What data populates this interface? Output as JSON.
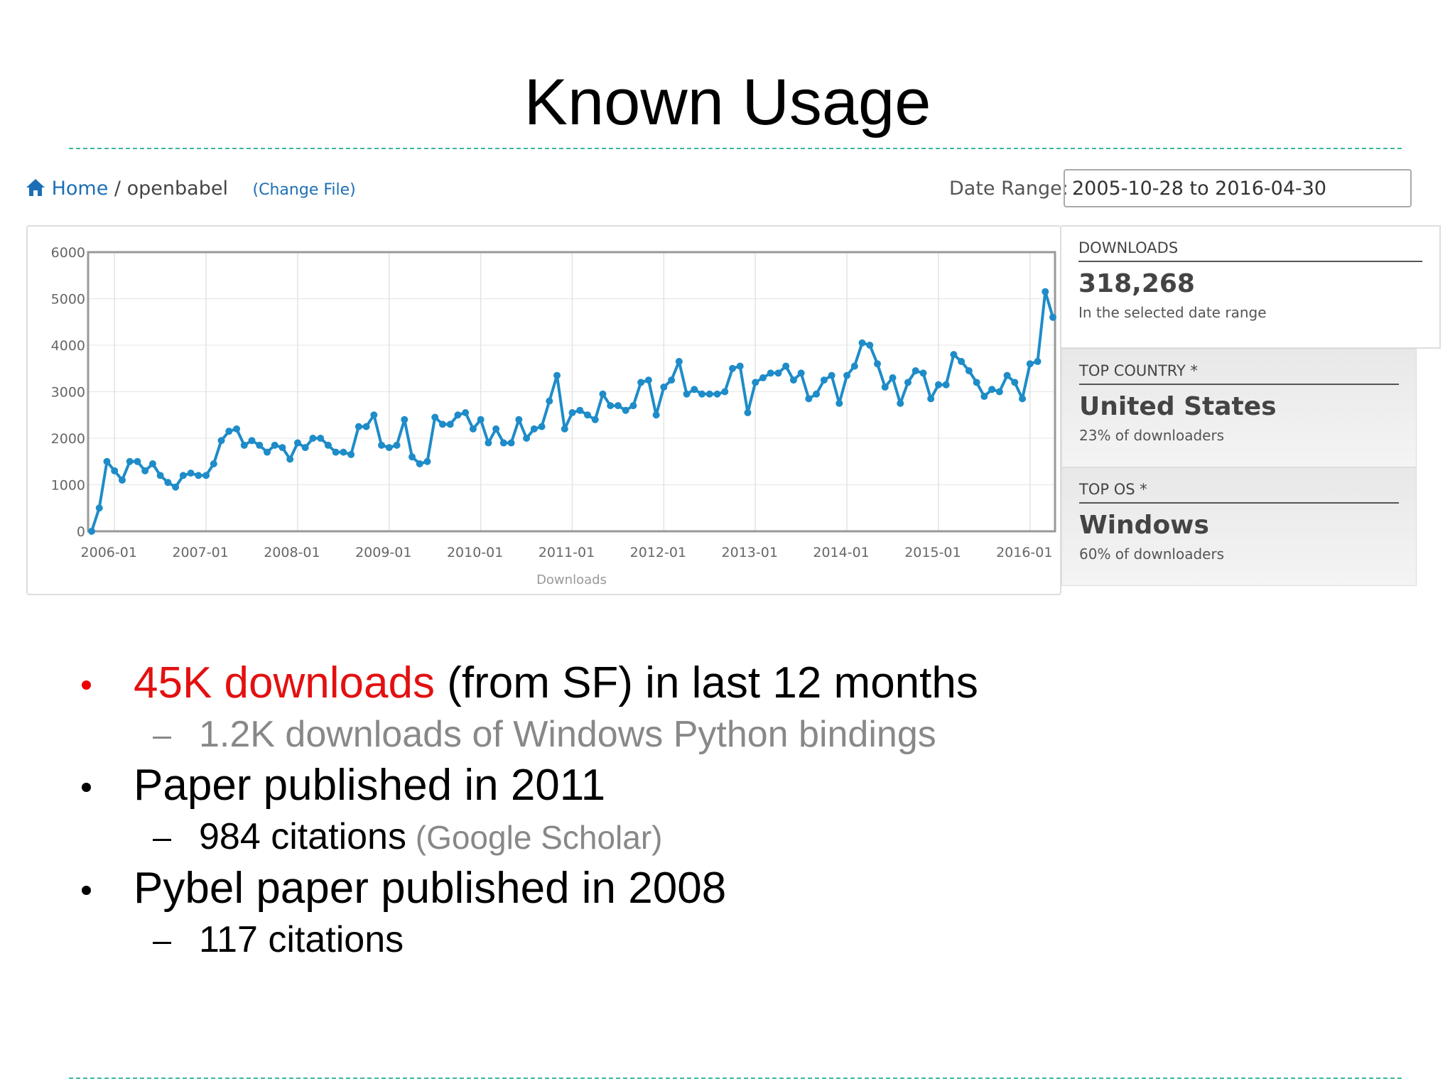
{
  "title": "Known Usage",
  "breadcrumb": {
    "home": "Home",
    "separator": "/",
    "project": "openbabel",
    "change": "(Change File)"
  },
  "date_range": {
    "label": "Date Range:",
    "value": "2005-10-28 to 2016-04-30"
  },
  "stats": [
    {
      "heading": "DOWNLOADS",
      "value": "318,268",
      "note": "In the selected date range"
    },
    {
      "heading": "TOP COUNTRY *",
      "value": "United States",
      "note": "23% of downloaders"
    },
    {
      "heading": "TOP OS *",
      "value": "Windows",
      "note": "60% of downloaders"
    }
  ],
  "bullets": [
    {
      "highlight": "45K downloads",
      "text": " (from SF) in last 12 months",
      "sub": [
        {
          "note": "1.2K downloads of Windows Python bindings"
        }
      ]
    },
    {
      "text": "Paper published in 2011",
      "sub": [
        {
          "text": "984 citations",
          "note": " (Google Scholar)"
        }
      ]
    },
    {
      "text": "Pybel paper published in 2008",
      "sub": [
        {
          "text": "117 citations"
        }
      ]
    }
  ],
  "chart_data": {
    "type": "line",
    "x_label": "Downloads",
    "color": "#1e8cc8",
    "grid": true,
    "ylim": [
      0,
      6000
    ],
    "yticks": [
      0,
      1000,
      2000,
      3000,
      4000,
      5000,
      6000
    ],
    "xticks": [
      "2006-01",
      "2007-01",
      "2008-01",
      "2009-01",
      "2010-01",
      "2011-01",
      "2012-01",
      "2013-01",
      "2014-01",
      "2015-01",
      "2016-01"
    ],
    "categories": [
      "2005-10",
      "2005-11",
      "2005-12",
      "2006-01",
      "2006-02",
      "2006-03",
      "2006-04",
      "2006-05",
      "2006-06",
      "2006-07",
      "2006-08",
      "2006-09",
      "2006-10",
      "2006-11",
      "2006-12",
      "2007-01",
      "2007-02",
      "2007-03",
      "2007-04",
      "2007-05",
      "2007-06",
      "2007-07",
      "2007-08",
      "2007-09",
      "2007-10",
      "2007-11",
      "2007-12",
      "2008-01",
      "2008-02",
      "2008-03",
      "2008-04",
      "2008-05",
      "2008-06",
      "2008-07",
      "2008-08",
      "2008-09",
      "2008-10",
      "2008-11",
      "2008-12",
      "2009-01",
      "2009-02",
      "2009-03",
      "2009-04",
      "2009-05",
      "2009-06",
      "2009-07",
      "2009-08",
      "2009-09",
      "2009-10",
      "2009-11",
      "2009-12",
      "2010-01",
      "2010-02",
      "2010-03",
      "2010-04",
      "2010-05",
      "2010-06",
      "2010-07",
      "2010-08",
      "2010-09",
      "2010-10",
      "2010-11",
      "2010-12",
      "2011-01",
      "2011-02",
      "2011-03",
      "2011-04",
      "2011-05",
      "2011-06",
      "2011-07",
      "2011-08",
      "2011-09",
      "2011-10",
      "2011-11",
      "2011-12",
      "2012-01",
      "2012-02",
      "2012-03",
      "2012-04",
      "2012-05",
      "2012-06",
      "2012-07",
      "2012-08",
      "2012-09",
      "2012-10",
      "2012-11",
      "2012-12",
      "2013-01",
      "2013-02",
      "2013-03",
      "2013-04",
      "2013-05",
      "2013-06",
      "2013-07",
      "2013-08",
      "2013-09",
      "2013-10",
      "2013-11",
      "2013-12",
      "2014-01",
      "2014-02",
      "2014-03",
      "2014-04",
      "2014-05",
      "2014-06",
      "2014-07",
      "2014-08",
      "2014-09",
      "2014-10",
      "2014-11",
      "2014-12",
      "2015-01",
      "2015-02",
      "2015-03",
      "2015-04",
      "2015-05",
      "2015-06",
      "2015-07",
      "2015-08",
      "2015-09",
      "2015-10",
      "2015-11",
      "2015-12",
      "2016-01",
      "2016-02",
      "2016-03",
      "2016-04"
    ],
    "values": [
      0,
      500,
      1500,
      1300,
      1100,
      1500,
      1500,
      1300,
      1450,
      1200,
      1050,
      950,
      1200,
      1250,
      1200,
      1200,
      1450,
      1950,
      2150,
      2200,
      1850,
      1950,
      1850,
      1700,
      1850,
      1800,
      1550,
      1900,
      1800,
      2000,
      2000,
      1850,
      1700,
      1700,
      1650,
      2250,
      2250,
      2500,
      1850,
      1800,
      1850,
      2400,
      1600,
      1450,
      1500,
      2450,
      2300,
      2300,
      2500,
      2550,
      2200,
      2400,
      1900,
      2200,
      1900,
      1900,
      2400,
      2000,
      2200,
      2250,
      2800,
      3350,
      2200,
      2550,
      2600,
      2500,
      2400,
      2950,
      2700,
      2700,
      2600,
      2700,
      3200,
      3250,
      2500,
      3100,
      3250,
      3650,
      2950,
      3050,
      2950,
      2950,
      2950,
      3000,
      3500,
      3550,
      2550,
      3200,
      3300,
      3400,
      3400,
      3550,
      3250,
      3400,
      2850,
      2950,
      3250,
      3350,
      2750,
      3350,
      3550,
      4050,
      4000,
      3600,
      3100,
      3300,
      2750,
      3200,
      3450,
      3400,
      2850,
      3150,
      3150,
      3800,
      3650,
      3450,
      3200,
      2900,
      3050,
      3000,
      3350,
      3200,
      2850,
      3600,
      3650,
      5150,
      4600
    ]
  }
}
